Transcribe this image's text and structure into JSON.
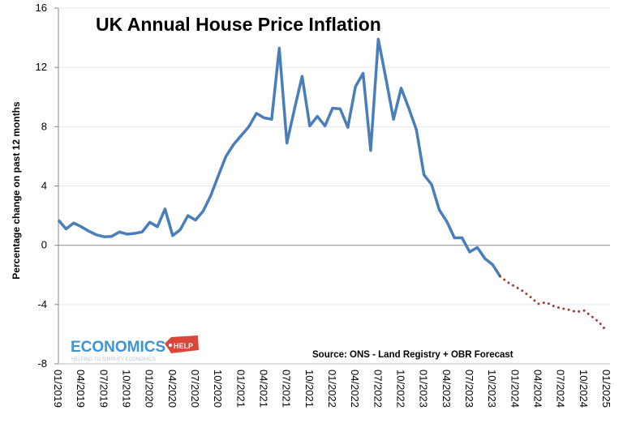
{
  "chart_data": {
    "type": "line",
    "title": "UK Annual House Price Inflation",
    "xlabel": "",
    "ylabel": "Percentage change on past 12 months",
    "ylim": [
      -8,
      16
    ],
    "yticks": [
      -8,
      -4,
      0,
      4,
      8,
      12,
      16
    ],
    "grid": true,
    "x_tick_labels": [
      "01/2019",
      "04/2019",
      "07/2019",
      "10/2019",
      "01/2020",
      "04/2020",
      "07/2020",
      "10/2020",
      "01/2021",
      "04/2021",
      "07/2021",
      "10/2021",
      "01/2022",
      "04/2022",
      "07/2022",
      "10/2022",
      "01/2023",
      "04/2023",
      "07/2023",
      "10/2023",
      "01/2024",
      "04/2024",
      "07/2024",
      "10/2024",
      "01/2025"
    ],
    "x_range": [
      "01/2019",
      "01/2025"
    ],
    "annotation": "Source: ONS - Land Registry + OBR Forecast",
    "logo": {
      "text": "ECONOMICS HELP",
      "tagline": "HELPING TO SIMPLIFY ECONOMICS"
    },
    "series": [
      {
        "style": "solid",
        "color": "#4a7ebb",
        "start": "01/2019",
        "values": [
          1.7,
          1.1,
          1.5,
          1.25,
          0.95,
          0.7,
          0.57,
          0.6,
          0.9,
          0.75,
          0.8,
          0.9,
          1.55,
          1.25,
          2.45,
          0.65,
          1.05,
          2.0,
          1.7,
          2.3,
          3.35,
          4.7,
          6.0,
          6.8,
          7.4,
          8.0,
          8.9,
          8.6,
          8.5,
          13.3,
          6.9,
          9.2,
          11.4,
          8.05,
          8.7,
          8.05,
          9.25,
          9.2,
          7.95,
          10.7,
          11.6,
          6.4,
          13.9,
          11.25,
          8.5,
          10.6,
          9.25,
          7.8,
          4.75,
          4.1,
          2.4,
          1.6,
          0.5,
          0.5,
          -0.45,
          -0.15,
          -0.9,
          -1.3,
          -2.1
        ]
      },
      {
        "style": "dotted",
        "color": "#a33a3a",
        "start": "11/2023",
        "values": [
          -2.1,
          -2.5,
          -2.8,
          -3.1,
          -3.5,
          -3.95,
          -3.85,
          -4.1,
          -4.25,
          -4.35,
          -4.5,
          -4.4,
          -4.8,
          -5.2,
          -5.8
        ]
      }
    ]
  }
}
